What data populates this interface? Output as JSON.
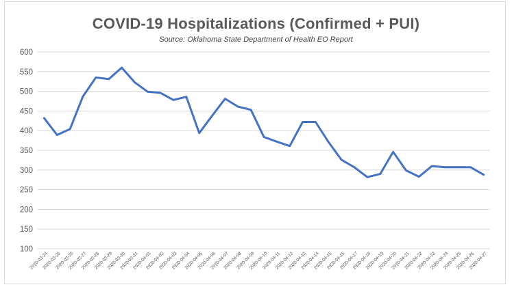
{
  "chart_data": {
    "type": "line",
    "title": "COVID-19 Hospitalizations (Confirmed + PUI)",
    "subtitle": "Source: Oklahoma State Department of Health EO Report",
    "xlabel": "",
    "ylabel": "",
    "ylim": [
      100,
      600
    ],
    "yticks": [
      100,
      150,
      200,
      250,
      300,
      350,
      400,
      450,
      500,
      550,
      600
    ],
    "grid": true,
    "line_color": "#4472c4",
    "categories": [
      "2020-03-24",
      "2020-03-25",
      "2020-03-26",
      "2020-03-27",
      "2020-03-28",
      "2020-03-29",
      "2020-03-30",
      "2020-03-31",
      "2020-04-01",
      "2020-04-02",
      "2020-04-03",
      "2020-04-04",
      "2020-04-05",
      "2020-04-06",
      "2020-04-07",
      "2020-04-08",
      "2020-04-09",
      "2020-04-10",
      "2020-04-11",
      "2020-04-12",
      "2020-04-13",
      "2020-04-14",
      "2020-04-15",
      "2020-04-16",
      "2020-04-17",
      "2020-04-18",
      "2020-04-19",
      "2020-04-20",
      "2020-04-21",
      "2020-04-22",
      "2020-04-23",
      "2020-04-24",
      "2020-04-25",
      "2020-04-26",
      "2020-04-27"
    ],
    "series": [
      {
        "name": "Hospitalizations",
        "values": [
          432,
          389,
          404,
          487,
          535,
          531,
          560,
          523,
          499,
          496,
          478,
          486,
          394,
          438,
          481,
          461,
          453,
          384,
          372,
          361,
          422,
          422,
          371,
          326,
          307,
          282,
          290,
          346,
          299,
          283,
          310,
          307,
          307,
          307,
          288
        ]
      }
    ]
  }
}
